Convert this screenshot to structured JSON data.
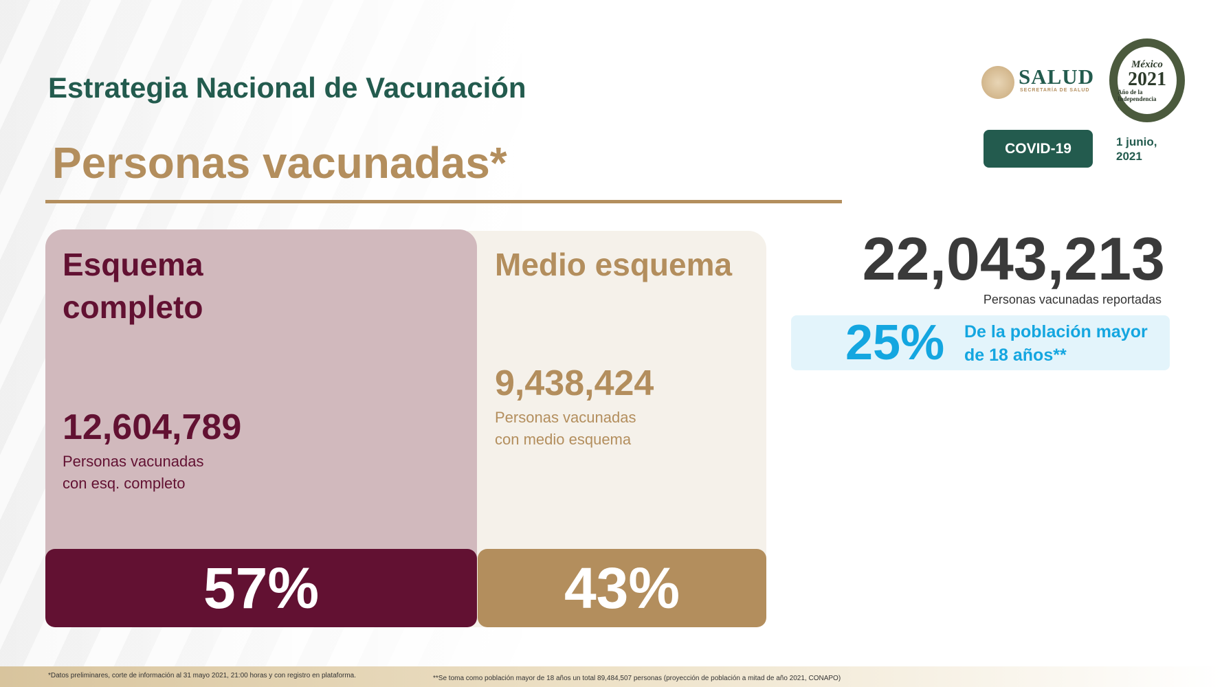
{
  "header": {
    "title": "Estrategia Nacional de Vacunación",
    "subtitle": "Personas vacunadas*",
    "badge": "COVID-19",
    "date_line1": "1 junio,",
    "date_line2": "2021",
    "logo_salud": "SALUD",
    "logo_salud_sub": "SECRETARÍA DE SALUD",
    "logo_2021": {
      "line1": "México",
      "line2": "2021",
      "line3": "Año de la Independencia"
    }
  },
  "complete": {
    "title_line1": "Esquema",
    "title_line2": "completo",
    "count": "12,604,789",
    "desc_line1": "Personas vacunadas",
    "desc_line2": "con esq. completo",
    "percent": "57%"
  },
  "half": {
    "title": "Medio esquema",
    "count": "9,438,424",
    "desc_line1": "Personas vacunadas",
    "desc_line2": "con medio esquema",
    "percent": "43%"
  },
  "total": {
    "count": "22,043,213",
    "label": "Personas vacunadas reportadas",
    "percent": "25%",
    "percent_desc_line1": "De la población mayor",
    "percent_desc_line2": "de 18 años**"
  },
  "footer": {
    "note1": "*Datos preliminares, corte de información al 31 mayo 2021, 21:00 horas y con registro en plataforma.",
    "note2": "**Se toma como población mayor de 18 años un total 89,484,507 personas (proyección de población a mitad de año 2021, CONAPO)"
  },
  "colors": {
    "green": "#235b4e",
    "gold": "#b38e5d",
    "maroon": "#621132",
    "blue": "#14a6e0"
  }
}
